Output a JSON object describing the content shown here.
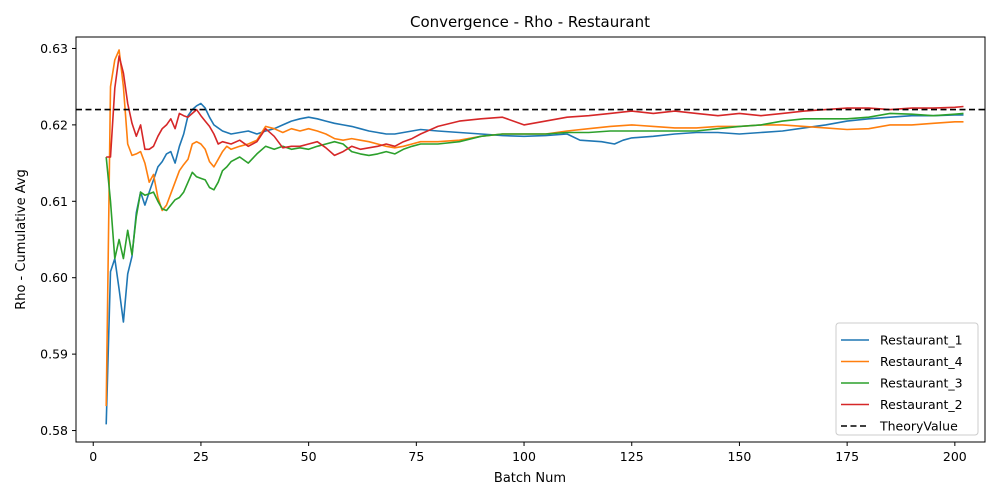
{
  "chart_data": {
    "type": "line",
    "title": "Convergence - Rho - Restaurant",
    "xlabel": "Batch Num",
    "ylabel": "Rho - Cumulative Avg",
    "xlim": [
      -4,
      207
    ],
    "ylim": [
      0.5785,
      0.6315
    ],
    "xticks": [
      0,
      25,
      50,
      75,
      100,
      125,
      150,
      175,
      200
    ],
    "yticks": [
      0.58,
      0.59,
      0.6,
      0.61,
      0.62,
      0.63
    ],
    "ytick_labels": [
      "0.58",
      "0.59",
      "0.60",
      "0.61",
      "0.62",
      "0.63"
    ],
    "grid": false,
    "legend_position": "bottom-right",
    "reference_line": {
      "name": "TheoryValue",
      "y": 0.622,
      "color": "#000000",
      "style": "dashed"
    },
    "series": [
      {
        "name": "Restaurant_1",
        "color": "#1f77b4",
        "points": [
          [
            3,
            0.5808
          ],
          [
            4,
            0.6008
          ],
          [
            5,
            0.6025
          ],
          [
            6,
            0.5985
          ],
          [
            7,
            0.5942
          ],
          [
            8,
            0.6005
          ],
          [
            9,
            0.6028
          ],
          [
            10,
            0.6085
          ],
          [
            11,
            0.6112
          ],
          [
            12,
            0.6095
          ],
          [
            13,
            0.6112
          ],
          [
            14,
            0.6128
          ],
          [
            15,
            0.6145
          ],
          [
            16,
            0.6152
          ],
          [
            17,
            0.6162
          ],
          [
            18,
            0.6165
          ],
          [
            19,
            0.615
          ],
          [
            20,
            0.6172
          ],
          [
            21,
            0.6188
          ],
          [
            22,
            0.6212
          ],
          [
            23,
            0.622
          ],
          [
            24,
            0.6225
          ],
          [
            25,
            0.6228
          ],
          [
            26,
            0.6222
          ],
          [
            27,
            0.621
          ],
          [
            28,
            0.62
          ],
          [
            30,
            0.6192
          ],
          [
            32,
            0.6188
          ],
          [
            34,
            0.619
          ],
          [
            36,
            0.6192
          ],
          [
            38,
            0.6188
          ],
          [
            40,
            0.6192
          ],
          [
            42,
            0.6195
          ],
          [
            44,
            0.62
          ],
          [
            46,
            0.6205
          ],
          [
            48,
            0.6208
          ],
          [
            50,
            0.621
          ],
          [
            52,
            0.6208
          ],
          [
            54,
            0.6205
          ],
          [
            56,
            0.6202
          ],
          [
            58,
            0.62
          ],
          [
            60,
            0.6198
          ],
          [
            62,
            0.6195
          ],
          [
            64,
            0.6192
          ],
          [
            66,
            0.619
          ],
          [
            68,
            0.6188
          ],
          [
            70,
            0.6188
          ],
          [
            72,
            0.619
          ],
          [
            74,
            0.6192
          ],
          [
            76,
            0.6194
          ],
          [
            80,
            0.6192
          ],
          [
            85,
            0.619
          ],
          [
            90,
            0.6188
          ],
          [
            95,
            0.6186
          ],
          [
            100,
            0.6185
          ],
          [
            105,
            0.6186
          ],
          [
            110,
            0.6188
          ],
          [
            113,
            0.618
          ],
          [
            118,
            0.6178
          ],
          [
            121,
            0.6175
          ],
          [
            123,
            0.618
          ],
          [
            125,
            0.6183
          ],
          [
            130,
            0.6185
          ],
          [
            135,
            0.6188
          ],
          [
            140,
            0.619
          ],
          [
            145,
            0.619
          ],
          [
            150,
            0.6188
          ],
          [
            155,
            0.619
          ],
          [
            160,
            0.6192
          ],
          [
            165,
            0.6196
          ],
          [
            170,
            0.62
          ],
          [
            175,
            0.6205
          ],
          [
            180,
            0.6208
          ],
          [
            185,
            0.621
          ],
          [
            190,
            0.6212
          ],
          [
            195,
            0.6212
          ],
          [
            200,
            0.6213
          ],
          [
            202,
            0.6213
          ]
        ]
      },
      {
        "name": "Restaurant_4",
        "color": "#ff7f0e",
        "points": [
          [
            3,
            0.5832
          ],
          [
            4,
            0.625
          ],
          [
            5,
            0.6285
          ],
          [
            6,
            0.6298
          ],
          [
            7,
            0.625
          ],
          [
            8,
            0.6175
          ],
          [
            9,
            0.616
          ],
          [
            10,
            0.6162
          ],
          [
            11,
            0.6165
          ],
          [
            12,
            0.615
          ],
          [
            13,
            0.6125
          ],
          [
            14,
            0.6135
          ],
          [
            15,
            0.6105
          ],
          [
            16,
            0.6088
          ],
          [
            17,
            0.6095
          ],
          [
            18,
            0.611
          ],
          [
            19,
            0.6125
          ],
          [
            20,
            0.614
          ],
          [
            21,
            0.6148
          ],
          [
            22,
            0.6155
          ],
          [
            23,
            0.6175
          ],
          [
            24,
            0.6178
          ],
          [
            25,
            0.6175
          ],
          [
            26,
            0.6168
          ],
          [
            27,
            0.6152
          ],
          [
            28,
            0.6145
          ],
          [
            29,
            0.6155
          ],
          [
            30,
            0.6165
          ],
          [
            31,
            0.6172
          ],
          [
            32,
            0.6168
          ],
          [
            34,
            0.6172
          ],
          [
            36,
            0.6175
          ],
          [
            38,
            0.618
          ],
          [
            40,
            0.6198
          ],
          [
            42,
            0.6195
          ],
          [
            44,
            0.619
          ],
          [
            46,
            0.6195
          ],
          [
            48,
            0.6192
          ],
          [
            50,
            0.6195
          ],
          [
            52,
            0.6192
          ],
          [
            54,
            0.6188
          ],
          [
            56,
            0.6182
          ],
          [
            58,
            0.618
          ],
          [
            60,
            0.6182
          ],
          [
            62,
            0.618
          ],
          [
            64,
            0.6178
          ],
          [
            66,
            0.6175
          ],
          [
            68,
            0.6172
          ],
          [
            70,
            0.617
          ],
          [
            72,
            0.6172
          ],
          [
            74,
            0.6175
          ],
          [
            76,
            0.6178
          ],
          [
            80,
            0.6178
          ],
          [
            85,
            0.618
          ],
          [
            90,
            0.6185
          ],
          [
            95,
            0.6188
          ],
          [
            100,
            0.6188
          ],
          [
            105,
            0.6188
          ],
          [
            110,
            0.6192
          ],
          [
            115,
            0.6195
          ],
          [
            120,
            0.6198
          ],
          [
            125,
            0.62
          ],
          [
            130,
            0.6198
          ],
          [
            135,
            0.6196
          ],
          [
            140,
            0.6196
          ],
          [
            145,
            0.6198
          ],
          [
            150,
            0.6198
          ],
          [
            155,
            0.62
          ],
          [
            160,
            0.62
          ],
          [
            165,
            0.6198
          ],
          [
            170,
            0.6196
          ],
          [
            175,
            0.6194
          ],
          [
            180,
            0.6195
          ],
          [
            185,
            0.62
          ],
          [
            190,
            0.62
          ],
          [
            195,
            0.6202
          ],
          [
            200,
            0.6204
          ],
          [
            202,
            0.6204
          ]
        ]
      },
      {
        "name": "Restaurant_3",
        "color": "#2ca02c",
        "points": [
          [
            3,
            0.6158
          ],
          [
            4,
            0.61
          ],
          [
            5,
            0.6025
          ],
          [
            6,
            0.605
          ],
          [
            7,
            0.6025
          ],
          [
            8,
            0.6062
          ],
          [
            9,
            0.603
          ],
          [
            10,
            0.608
          ],
          [
            11,
            0.6112
          ],
          [
            12,
            0.6108
          ],
          [
            13,
            0.611
          ],
          [
            14,
            0.6112
          ],
          [
            15,
            0.61
          ],
          [
            16,
            0.609
          ],
          [
            17,
            0.6088
          ],
          [
            18,
            0.6095
          ],
          [
            19,
            0.6102
          ],
          [
            20,
            0.6105
          ],
          [
            21,
            0.6112
          ],
          [
            22,
            0.6125
          ],
          [
            23,
            0.6138
          ],
          [
            24,
            0.6132
          ],
          [
            25,
            0.613
          ],
          [
            26,
            0.6128
          ],
          [
            27,
            0.6118
          ],
          [
            28,
            0.6115
          ],
          [
            29,
            0.6125
          ],
          [
            30,
            0.614
          ],
          [
            31,
            0.6145
          ],
          [
            32,
            0.6152
          ],
          [
            34,
            0.6158
          ],
          [
            36,
            0.615
          ],
          [
            38,
            0.6162
          ],
          [
            40,
            0.6172
          ],
          [
            42,
            0.6168
          ],
          [
            44,
            0.6172
          ],
          [
            46,
            0.6168
          ],
          [
            48,
            0.617
          ],
          [
            50,
            0.6168
          ],
          [
            52,
            0.6172
          ],
          [
            54,
            0.6175
          ],
          [
            56,
            0.6178
          ],
          [
            58,
            0.6175
          ],
          [
            60,
            0.6165
          ],
          [
            62,
            0.6162
          ],
          [
            64,
            0.616
          ],
          [
            66,
            0.6162
          ],
          [
            68,
            0.6165
          ],
          [
            70,
            0.6162
          ],
          [
            72,
            0.6168
          ],
          [
            74,
            0.6172
          ],
          [
            76,
            0.6175
          ],
          [
            80,
            0.6175
          ],
          [
            85,
            0.6178
          ],
          [
            90,
            0.6185
          ],
          [
            95,
            0.6188
          ],
          [
            100,
            0.6188
          ],
          [
            105,
            0.6188
          ],
          [
            110,
            0.619
          ],
          [
            115,
            0.619
          ],
          [
            120,
            0.6192
          ],
          [
            125,
            0.6192
          ],
          [
            130,
            0.6192
          ],
          [
            135,
            0.6192
          ],
          [
            140,
            0.6192
          ],
          [
            145,
            0.6195
          ],
          [
            150,
            0.6198
          ],
          [
            155,
            0.62
          ],
          [
            160,
            0.6205
          ],
          [
            165,
            0.6208
          ],
          [
            170,
            0.6208
          ],
          [
            175,
            0.6208
          ],
          [
            180,
            0.621
          ],
          [
            185,
            0.6215
          ],
          [
            190,
            0.6214
          ],
          [
            195,
            0.6212
          ],
          [
            200,
            0.6214
          ],
          [
            202,
            0.6215
          ]
        ]
      },
      {
        "name": "Restaurant_2",
        "color": "#d62728",
        "points": [
          [
            3,
            0.6158
          ],
          [
            4,
            0.6158
          ],
          [
            5,
            0.6248
          ],
          [
            6,
            0.629
          ],
          [
            7,
            0.6268
          ],
          [
            8,
            0.6228
          ],
          [
            9,
            0.6202
          ],
          [
            10,
            0.6185
          ],
          [
            11,
            0.62
          ],
          [
            12,
            0.6168
          ],
          [
            13,
            0.6168
          ],
          [
            14,
            0.6172
          ],
          [
            15,
            0.6185
          ],
          [
            16,
            0.6195
          ],
          [
            17,
            0.62
          ],
          [
            18,
            0.6208
          ],
          [
            19,
            0.6195
          ],
          [
            20,
            0.6215
          ],
          [
            21,
            0.6212
          ],
          [
            22,
            0.621
          ],
          [
            23,
            0.6215
          ],
          [
            24,
            0.622
          ],
          [
            25,
            0.6212
          ],
          [
            26,
            0.6205
          ],
          [
            27,
            0.6198
          ],
          [
            28,
            0.6188
          ],
          [
            29,
            0.6175
          ],
          [
            30,
            0.6178
          ],
          [
            32,
            0.6175
          ],
          [
            34,
            0.618
          ],
          [
            36,
            0.6172
          ],
          [
            38,
            0.6178
          ],
          [
            40,
            0.6195
          ],
          [
            42,
            0.6185
          ],
          [
            44,
            0.617
          ],
          [
            46,
            0.6172
          ],
          [
            48,
            0.6172
          ],
          [
            50,
            0.6175
          ],
          [
            52,
            0.6178
          ],
          [
            54,
            0.617
          ],
          [
            56,
            0.616
          ],
          [
            58,
            0.6165
          ],
          [
            60,
            0.6172
          ],
          [
            62,
            0.6168
          ],
          [
            64,
            0.617
          ],
          [
            66,
            0.6172
          ],
          [
            68,
            0.6175
          ],
          [
            70,
            0.6172
          ],
          [
            72,
            0.6178
          ],
          [
            74,
            0.6182
          ],
          [
            76,
            0.6188
          ],
          [
            80,
            0.6198
          ],
          [
            85,
            0.6205
          ],
          [
            90,
            0.6208
          ],
          [
            95,
            0.621
          ],
          [
            100,
            0.62
          ],
          [
            105,
            0.6205
          ],
          [
            110,
            0.621
          ],
          [
            115,
            0.6212
          ],
          [
            120,
            0.6215
          ],
          [
            125,
            0.6218
          ],
          [
            130,
            0.6215
          ],
          [
            135,
            0.6218
          ],
          [
            140,
            0.6215
          ],
          [
            145,
            0.6212
          ],
          [
            150,
            0.6215
          ],
          [
            155,
            0.6212
          ],
          [
            160,
            0.6215
          ],
          [
            165,
            0.6218
          ],
          [
            170,
            0.622
          ],
          [
            175,
            0.6222
          ],
          [
            180,
            0.6222
          ],
          [
            185,
            0.622
          ],
          [
            190,
            0.6222
          ],
          [
            195,
            0.6222
          ],
          [
            200,
            0.6223
          ],
          [
            202,
            0.6224
          ]
        ]
      }
    ]
  }
}
